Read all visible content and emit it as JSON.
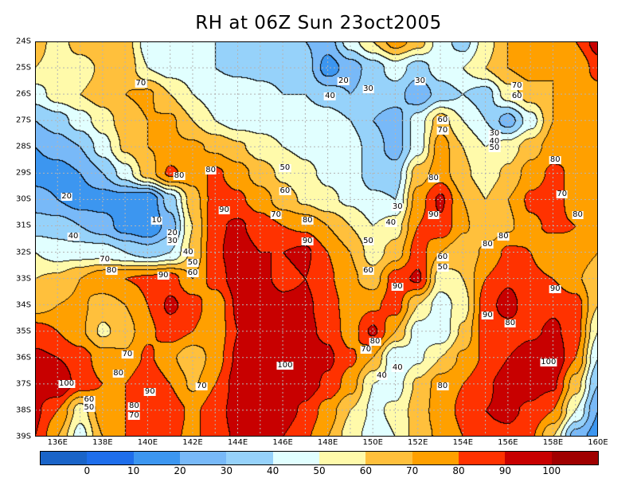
{
  "title": "RH at 06Z Sun 23oct2005",
  "map": {
    "lon_range": [
      135,
      160
    ],
    "lat_range_south": [
      24,
      39
    ],
    "lat_labels": [
      "24S",
      "25S",
      "26S",
      "27S",
      "28S",
      "29S",
      "30S",
      "31S",
      "32S",
      "33S",
      "34S",
      "35S",
      "36S",
      "37S",
      "38S",
      "39S"
    ],
    "lon_labels": [
      "136E",
      "138E",
      "140E",
      "142E",
      "144E",
      "146E",
      "148E",
      "150E",
      "152E",
      "154E",
      "156E",
      "158E",
      "160E"
    ],
    "grid": "dashed, every 1 degree",
    "contour_levels": [
      0,
      10,
      20,
      30,
      40,
      50,
      60,
      70,
      80,
      90,
      100
    ],
    "field_lons": [
      135,
      136,
      137,
      138,
      139,
      140,
      141,
      142,
      143,
      144,
      145,
      146,
      147,
      148,
      149,
      150,
      151,
      152,
      153,
      154,
      155,
      156,
      157,
      158,
      159,
      160
    ],
    "field_lats_south": [
      24,
      25,
      26,
      27,
      28,
      29,
      30,
      31,
      32,
      33,
      34,
      35,
      36,
      37,
      38,
      39
    ],
    "rh_field": [
      [
        65,
        55,
        65,
        70,
        65,
        45,
        45,
        45,
        40,
        35,
        38,
        35,
        30,
        25,
        45,
        60,
        75,
        65,
        45,
        35,
        55,
        70,
        75,
        70,
        80,
        95
      ],
      [
        60,
        55,
        55,
        62,
        68,
        50,
        45,
        45,
        40,
        38,
        38,
        38,
        35,
        15,
        25,
        35,
        45,
        35,
        45,
        50,
        60,
        70,
        75,
        70,
        70,
        85
      ],
      [
        45,
        55,
        60,
        65,
        70,
        72,
        60,
        50,
        45,
        45,
        42,
        40,
        40,
        35,
        30,
        35,
        35,
        22,
        35,
        40,
        35,
        55,
        65,
        70,
        72,
        75
      ],
      [
        30,
        35,
        45,
        55,
        65,
        70,
        72,
        60,
        50,
        45,
        45,
        45,
        45,
        45,
        40,
        30,
        25,
        45,
        65,
        50,
        40,
        25,
        45,
        70,
        72,
        72
      ],
      [
        20,
        25,
        30,
        45,
        62,
        70,
        72,
        72,
        68,
        62,
        55,
        50,
        48,
        45,
        45,
        35,
        25,
        45,
        75,
        60,
        50,
        55,
        65,
        75,
        80,
        75
      ],
      [
        15,
        15,
        20,
        30,
        45,
        65,
        82,
        75,
        82,
        75,
        65,
        58,
        52,
        48,
        45,
        35,
        35,
        65,
        75,
        62,
        55,
        62,
        75,
        82,
        78,
        75
      ],
      [
        25,
        20,
        15,
        15,
        15,
        10,
        35,
        65,
        85,
        82,
        75,
        65,
        58,
        52,
        48,
        42,
        40,
        75,
        92,
        70,
        60,
        70,
        82,
        85,
        75,
        72
      ],
      [
        35,
        35,
        30,
        25,
        15,
        10,
        25,
        60,
        88,
        92,
        85,
        80,
        78,
        70,
        60,
        50,
        55,
        80,
        88,
        72,
        62,
        68,
        78,
        82,
        80,
        72
      ],
      [
        50,
        45,
        45,
        45,
        40,
        35,
        40,
        62,
        88,
        95,
        90,
        90,
        92,
        80,
        70,
        55,
        65,
        85,
        70,
        62,
        72,
        82,
        80,
        72,
        78,
        70
      ],
      [
        60,
        62,
        70,
        78,
        80,
        82,
        85,
        70,
        85,
        95,
        92,
        88,
        90,
        82,
        72,
        65,
        85,
        92,
        55,
        60,
        80,
        88,
        82,
        80,
        72,
        62
      ],
      [
        65,
        70,
        72,
        65,
        70,
        80,
        92,
        85,
        72,
        92,
        96,
        92,
        92,
        85,
        75,
        78,
        85,
        60,
        45,
        55,
        85,
        95,
        82,
        88,
        85,
        60
      ],
      [
        85,
        80,
        72,
        58,
        65,
        78,
        85,
        80,
        72,
        90,
        95,
        95,
        92,
        88,
        75,
        92,
        70,
        45,
        42,
        62,
        85,
        85,
        88,
        92,
        85,
        50
      ],
      [
        92,
        90,
        85,
        75,
        72,
        82,
        72,
        62,
        75,
        92,
        100,
        98,
        95,
        92,
        82,
        70,
        40,
        48,
        60,
        72,
        82,
        90,
        95,
        100,
        80,
        40
      ],
      [
        95,
        100,
        85,
        80,
        80,
        90,
        80,
        68,
        80,
        95,
        100,
        98,
        95,
        88,
        75,
        50,
        45,
        62,
        75,
        80,
        88,
        95,
        95,
        92,
        65,
        30
      ],
      [
        92,
        80,
        55,
        75,
        80,
        82,
        85,
        78,
        85,
        95,
        98,
        95,
        88,
        75,
        60,
        48,
        52,
        65,
        75,
        82,
        90,
        92,
        88,
        80,
        50,
        20
      ],
      [
        90,
        70,
        45,
        70,
        80,
        82,
        82,
        78,
        85,
        92,
        92,
        90,
        82,
        70,
        55,
        45,
        50,
        65,
        72,
        80,
        88,
        88,
        82,
        60,
        25,
        15
      ]
    ],
    "contour_labels": [
      {
        "t": "70",
        "lon": 139.7,
        "lat": 25.6
      },
      {
        "t": "20",
        "lon": 148.7,
        "lat": 25.5
      },
      {
        "t": "30",
        "lon": 149.8,
        "lat": 25.8
      },
      {
        "t": "40",
        "lon": 148.1,
        "lat": 26.1
      },
      {
        "t": "30",
        "lon": 152.1,
        "lat": 25.5
      },
      {
        "t": "70",
        "lon": 156.4,
        "lat": 25.7
      },
      {
        "t": "60",
        "lon": 156.4,
        "lat": 26.1
      },
      {
        "t": "60",
        "lon": 153.1,
        "lat": 27.0
      },
      {
        "t": "70",
        "lon": 153.1,
        "lat": 27.4
      },
      {
        "t": "30",
        "lon": 155.4,
        "lat": 27.5
      },
      {
        "t": "40",
        "lon": 155.4,
        "lat": 27.8
      },
      {
        "t": "50",
        "lon": 155.4,
        "lat": 28.05
      },
      {
        "t": "50",
        "lon": 146.1,
        "lat": 28.8
      },
      {
        "t": "60",
        "lon": 146.1,
        "lat": 29.7
      },
      {
        "t": "70",
        "lon": 145.7,
        "lat": 30.6
      },
      {
        "t": "80",
        "lon": 147.1,
        "lat": 30.8
      },
      {
        "t": "90",
        "lon": 147.1,
        "lat": 31.6
      },
      {
        "t": "80",
        "lon": 141.4,
        "lat": 29.1
      },
      {
        "t": "80",
        "lon": 142.8,
        "lat": 28.9
      },
      {
        "t": "90",
        "lon": 143.4,
        "lat": 30.4
      },
      {
        "t": "20",
        "lon": 136.4,
        "lat": 29.9
      },
      {
        "t": "10",
        "lon": 140.4,
        "lat": 30.8
      },
      {
        "t": "40",
        "lon": 136.7,
        "lat": 31.4
      },
      {
        "t": "20",
        "lon": 141.1,
        "lat": 31.3
      },
      {
        "t": "30",
        "lon": 141.1,
        "lat": 31.6
      },
      {
        "t": "40",
        "lon": 141.8,
        "lat": 32.0
      },
      {
        "t": "50",
        "lon": 142.0,
        "lat": 32.4
      },
      {
        "t": "60",
        "lon": 142.0,
        "lat": 32.8
      },
      {
        "t": "80",
        "lon": 152.7,
        "lat": 29.2
      },
      {
        "t": "90",
        "lon": 152.7,
        "lat": 30.6
      },
      {
        "t": "70",
        "lon": 158.4,
        "lat": 29.8
      },
      {
        "t": "80",
        "lon": 158.1,
        "lat": 28.5
      },
      {
        "t": "80",
        "lon": 159.1,
        "lat": 30.6
      },
      {
        "t": "80",
        "lon": 155.8,
        "lat": 31.4
      },
      {
        "t": "80",
        "lon": 155.1,
        "lat": 31.7
      },
      {
        "t": "30",
        "lon": 151.1,
        "lat": 30.3
      },
      {
        "t": "40",
        "lon": 150.8,
        "lat": 30.9
      },
      {
        "t": "50",
        "lon": 149.8,
        "lat": 31.6
      },
      {
        "t": "60",
        "lon": 149.8,
        "lat": 32.7
      },
      {
        "t": "60",
        "lon": 153.1,
        "lat": 32.2
      },
      {
        "t": "50",
        "lon": 153.1,
        "lat": 32.6
      },
      {
        "t": "90",
        "lon": 151.1,
        "lat": 33.3
      },
      {
        "t": "70",
        "lon": 138.1,
        "lat": 32.3
      },
      {
        "t": "80",
        "lon": 138.4,
        "lat": 32.7
      },
      {
        "t": "90",
        "lon": 140.7,
        "lat": 32.9
      },
      {
        "t": "90",
        "lon": 155.1,
        "lat": 34.4
      },
      {
        "t": "90",
        "lon": 158.1,
        "lat": 33.4
      },
      {
        "t": "80",
        "lon": 156.1,
        "lat": 34.7
      },
      {
        "t": "70",
        "lon": 139.1,
        "lat": 35.9
      },
      {
        "t": "80",
        "lon": 138.7,
        "lat": 36.6
      },
      {
        "t": "90",
        "lon": 140.1,
        "lat": 37.3
      },
      {
        "t": "70",
        "lon": 142.4,
        "lat": 37.1
      },
      {
        "t": "100",
        "lon": 136.4,
        "lat": 37.0
      },
      {
        "t": "60",
        "lon": 137.4,
        "lat": 37.6
      },
      {
        "t": "50",
        "lon": 137.4,
        "lat": 37.9
      },
      {
        "t": "80",
        "lon": 139.4,
        "lat": 37.85
      },
      {
        "t": "70",
        "lon": 139.4,
        "lat": 38.2
      },
      {
        "t": "100",
        "lon": 146.1,
        "lat": 36.3
      },
      {
        "t": "80",
        "lon": 150.1,
        "lat": 35.4
      },
      {
        "t": "70",
        "lon": 149.7,
        "lat": 35.7
      },
      {
        "t": "40",
        "lon": 150.4,
        "lat": 36.7
      },
      {
        "t": "40",
        "lon": 151.1,
        "lat": 36.4
      },
      {
        "t": "80",
        "lon": 153.1,
        "lat": 37.1
      },
      {
        "t": "100",
        "lon": 157.8,
        "lat": 36.2
      }
    ]
  },
  "colorbar": {
    "colors": [
      "#1a64c8",
      "#1e6eeb",
      "#3c96f0",
      "#78b9f8",
      "#96d2fa",
      "#e1ffff",
      "#fffaaa",
      "#ffc03c",
      "#ffa000",
      "#ff3200",
      "#c80000",
      "#a00000"
    ],
    "labels": [
      "0",
      "10",
      "20",
      "30",
      "40",
      "50",
      "60",
      "70",
      "80",
      "90",
      "100"
    ]
  }
}
